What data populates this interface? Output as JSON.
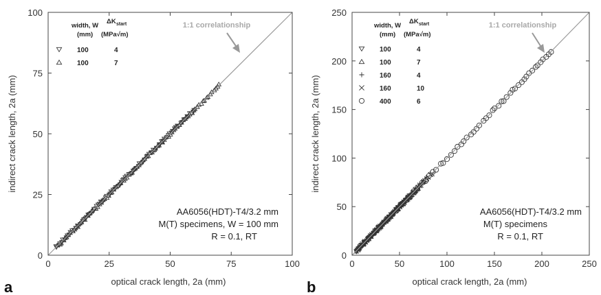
{
  "chart_data": [
    {
      "id": "a",
      "type": "scatter",
      "panel_label": "a",
      "xlabel": "optical crack length, 2a (mm)",
      "ylabel": "indirect crack length, 2a (mm)",
      "xlim": [
        0,
        100
      ],
      "ylim": [
        0,
        100
      ],
      "xticks": [
        "0",
        "25",
        "50",
        "75",
        "100"
      ],
      "yticks": [
        "0",
        "25",
        "50",
        "75",
        "100"
      ],
      "grid": false,
      "reference_line": {
        "label": "1:1 correlationship",
        "from": [
          0,
          0
        ],
        "to": [
          100,
          100
        ]
      },
      "legend": {
        "position": "top-left",
        "header_width": [
          "width, W",
          "(mm)"
        ],
        "header_dk": [
          "ΔK",
          "start",
          "(MPa√m)"
        ],
        "entries": [
          {
            "marker": "triangle-down",
            "width": "100",
            "dk": "4"
          },
          {
            "marker": "triangle-up",
            "width": "100",
            "dk": "7"
          }
        ]
      },
      "info_text": [
        "AA6056(HDT)-T4/3.2 mm",
        "M(T) specimens, W = 100 mm",
        "R = 0.1, RT"
      ],
      "series": [
        {
          "marker": "triangle-down",
          "x_range": [
            3,
            60
          ],
          "count": 90
        },
        {
          "marker": "triangle-up",
          "x_range": [
            4,
            70
          ],
          "count": 90
        }
      ]
    },
    {
      "id": "b",
      "type": "scatter",
      "panel_label": "b",
      "xlabel": "optical crack length, 2a (mm)",
      "ylabel": "indirect crack length, 2a (mm)",
      "xlim": [
        0,
        250
      ],
      "ylim": [
        0,
        250
      ],
      "xticks": [
        "0",
        "50",
        "100",
        "150",
        "200",
        "250"
      ],
      "yticks": [
        "0",
        "50",
        "100",
        "150",
        "200",
        "250"
      ],
      "grid": false,
      "reference_line": {
        "label": "1:1 correlationship",
        "from": [
          0,
          0
        ],
        "to": [
          250,
          250
        ]
      },
      "legend": {
        "position": "top-left",
        "header_width": [
          "width, W",
          "(mm)"
        ],
        "header_dk": [
          "ΔK",
          "start",
          "(MPa√m)"
        ],
        "entries": [
          {
            "marker": "triangle-down",
            "width": "100",
            "dk": "4"
          },
          {
            "marker": "triangle-up",
            "width": "100",
            "dk": "7"
          },
          {
            "marker": "plus",
            "width": "160",
            "dk": "4"
          },
          {
            "marker": "cross",
            "width": "160",
            "dk": "10"
          },
          {
            "marker": "circle",
            "width": "400",
            "dk": "6"
          }
        ]
      },
      "info_text": [
        "AA6056(HDT)-T4/3.2 mm",
        "M(T) specimens",
        "R = 0.1, RT"
      ],
      "series": [
        {
          "marker": "triangle-down",
          "x_range": [
            4,
            60
          ],
          "count": 80
        },
        {
          "marker": "triangle-up",
          "x_range": [
            5,
            70
          ],
          "count": 80
        },
        {
          "marker": "plus",
          "x_range": [
            6,
            80
          ],
          "count": 80
        },
        {
          "marker": "cross",
          "x_range": [
            6,
            85
          ],
          "count": 80
        },
        {
          "marker": "circle",
          "x_range": [
            8,
            210
          ],
          "count": 55
        }
      ]
    }
  ]
}
